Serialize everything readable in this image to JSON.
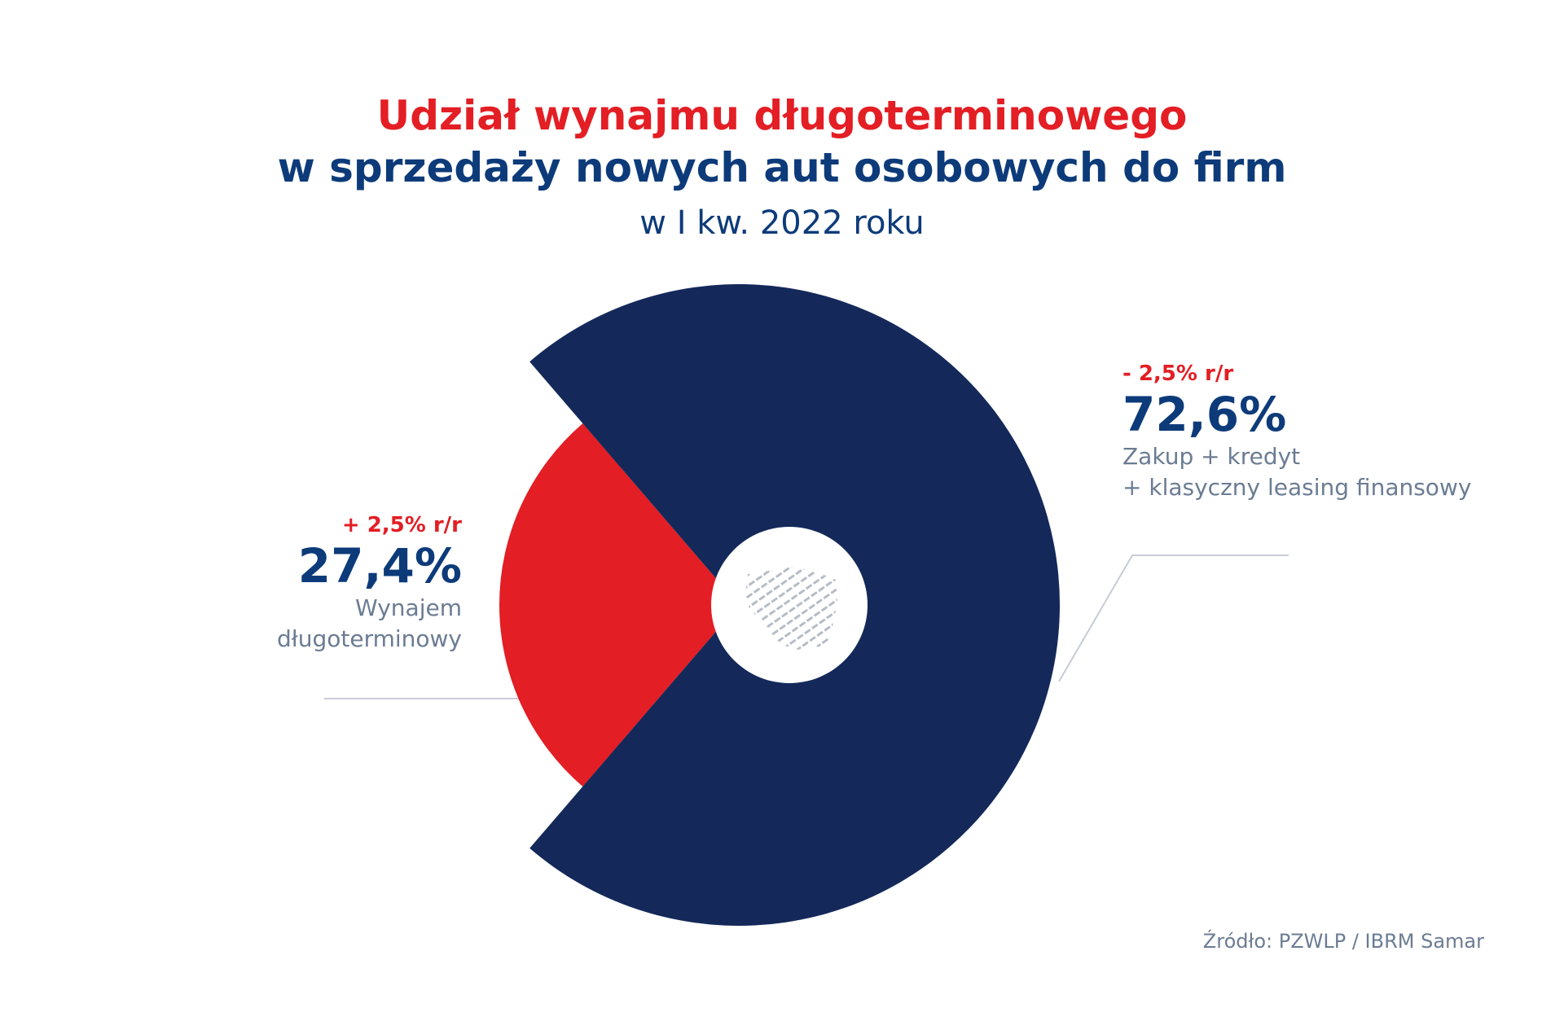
{
  "title": {
    "line1": "Udział wynajmu długoterminowego",
    "line2": "w sprzedaży nowych aut osobowych do firm",
    "subtitle": "w I kw. 2022 roku"
  },
  "colors": {
    "red": "#e31e24",
    "navy": "#0d3b7a",
    "slice_navy": "#14295a",
    "gray_text": "#6b7c93",
    "leader_line": "#c7ccd6"
  },
  "labels": {
    "left": {
      "change": "+ 2,5% r/r",
      "value": "27,4%",
      "desc_line1": "Wynajem",
      "desc_line2": "długoterminowy"
    },
    "right": {
      "change": "- 2,5% r/r",
      "value": "72,6%",
      "desc_line1": "Zakup + kredyt",
      "desc_line2": "+ klasyczny leasing finansowy"
    }
  },
  "source": "Źródło: PZWLP / IBRM Samar",
  "chart_data": {
    "type": "pie",
    "title": "Udział wynajmu długoterminowego w sprzedaży nowych aut osobowych do firm",
    "subtitle": "w I kw. 2022 roku",
    "slices": [
      {
        "label": "Wynajem długoterminowy",
        "value": 27.4,
        "change": "+ 2,5% r/r",
        "color": "#e31e24"
      },
      {
        "label": "Zakup + kredyt + klasyczny leasing finansowy",
        "value": 72.6,
        "change": "- 2,5% r/r",
        "color": "#14295a"
      }
    ],
    "center_icon": "poland-map-icon"
  }
}
